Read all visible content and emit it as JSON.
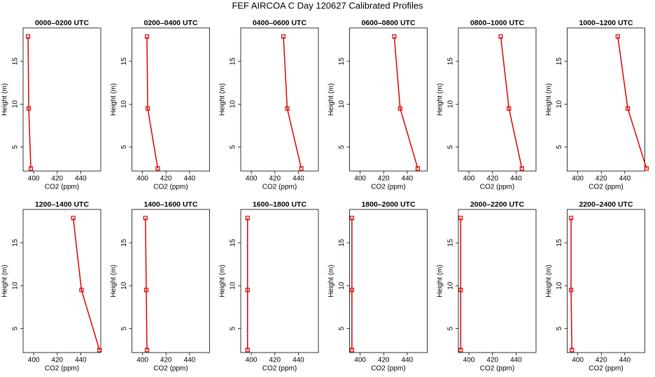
{
  "title": "FEF AIRCOA C  Day 120627  Calibrated Profiles",
  "chart_data": [
    {
      "type": "line",
      "title": "0000–0200 UTC",
      "xlabel": "CO2 (ppm)",
      "ylabel": "Height (m)",
      "x": [
        397.6,
        395.8,
        395.2
      ],
      "values": [
        2.5,
        9.5,
        17.9
      ],
      "color": "#dd0000",
      "xlim": [
        391,
        457
      ],
      "ylim": [
        2.2,
        18.9
      ],
      "xticks": [
        400,
        420,
        440
      ],
      "yticks": [
        5,
        10,
        15
      ]
    },
    {
      "type": "line",
      "title": "0200–0400 UTC",
      "xlabel": "CO2 (ppm)",
      "ylabel": "Height (m)",
      "x": [
        413,
        404.4,
        403.8
      ],
      "values": [
        2.5,
        9.5,
        17.9
      ],
      "color": "#dd0000",
      "xlim": [
        391,
        457
      ],
      "ylim": [
        2.2,
        18.9
      ],
      "xticks": [
        400,
        420,
        440
      ],
      "yticks": [
        5,
        10,
        15
      ]
    },
    {
      "type": "line",
      "title": "0400–0600 UTC",
      "xlabel": "CO2 (ppm)",
      "ylabel": "Height (m)",
      "x": [
        442.5,
        430.5,
        427.3
      ],
      "values": [
        2.5,
        9.5,
        17.9
      ],
      "color": "#dd0000",
      "xlim": [
        391,
        457
      ],
      "ylim": [
        2.2,
        18.9
      ],
      "xticks": [
        400,
        420,
        440
      ],
      "yticks": [
        5,
        10,
        15
      ]
    },
    {
      "type": "line",
      "title": "0600–0800 UTC",
      "xlabel": "CO2 (ppm)",
      "ylabel": "Height (m)",
      "x": [
        449,
        434,
        429
      ],
      "values": [
        2.5,
        9.5,
        17.9
      ],
      "color": "#dd0000",
      "xlim": [
        391,
        457
      ],
      "ylim": [
        2.2,
        18.9
      ],
      "xticks": [
        400,
        420,
        440
      ],
      "yticks": [
        5,
        10,
        15
      ]
    },
    {
      "type": "line",
      "title": "0800–1000 UTC",
      "xlabel": "CO2 (ppm)",
      "ylabel": "Height (m)",
      "x": [
        445,
        434,
        427
      ],
      "values": [
        2.5,
        9.5,
        17.9
      ],
      "color": "#dd0000",
      "xlim": [
        391,
        457
      ],
      "ylim": [
        2.2,
        18.9
      ],
      "xticks": [
        400,
        420,
        440
      ],
      "yticks": [
        5,
        10,
        15
      ]
    },
    {
      "type": "line",
      "title": "1000–1200 UTC",
      "xlabel": "CO2 (ppm)",
      "ylabel": "Height (m)",
      "x": [
        458.4,
        442.5,
        434
      ],
      "values": [
        2.5,
        9.5,
        17.9
      ],
      "color": "#dd0000",
      "xlim": [
        391,
        457
      ],
      "ylim": [
        2.2,
        18.9
      ],
      "xticks": [
        400,
        420,
        440
      ],
      "yticks": [
        5,
        10,
        15
      ]
    },
    {
      "type": "line",
      "title": "1200–1400 UTC",
      "xlabel": "CO2 (ppm)",
      "ylabel": "Height (m)",
      "x": [
        455.9,
        440.6,
        433.6
      ],
      "values": [
        2.5,
        9.5,
        17.9
      ],
      "color": "#dd0000",
      "xlim": [
        391,
        457
      ],
      "ylim": [
        2.2,
        18.9
      ],
      "xticks": [
        400,
        420,
        440
      ],
      "yticks": [
        5,
        10,
        15
      ]
    },
    {
      "type": "line",
      "title": "1400–1600 UTC",
      "xlabel": "CO2 (ppm)",
      "ylabel": "Height (m)",
      "x": [
        403.8,
        403.2,
        402.5
      ],
      "values": [
        2.5,
        9.5,
        17.9
      ],
      "color": "#dd0000",
      "xlim": [
        391,
        457
      ],
      "ylim": [
        2.2,
        18.9
      ],
      "xticks": [
        400,
        420,
        440
      ],
      "yticks": [
        5,
        10,
        15
      ]
    },
    {
      "type": "line",
      "title": "1600–1800 UTC",
      "xlabel": "CO2 (ppm)",
      "ylabel": "Height (m)",
      "x": [
        396.8,
        396.8,
        396.8
      ],
      "values": [
        2.5,
        9.5,
        17.9
      ],
      "color": "#dd0000",
      "xlim": [
        391,
        457
      ],
      "ylim": [
        2.2,
        18.9
      ],
      "xticks": [
        400,
        420,
        440
      ],
      "yticks": [
        5,
        10,
        15
      ]
    },
    {
      "type": "line",
      "title": "1800–2000 UTC",
      "xlabel": "CO2 (ppm)",
      "ylabel": "Height (m)",
      "x": [
        393,
        393,
        393
      ],
      "values": [
        2.5,
        9.5,
        17.9
      ],
      "color": "#dd0000",
      "xlim": [
        391,
        457
      ],
      "ylim": [
        2.2,
        18.9
      ],
      "xticks": [
        400,
        420,
        440
      ],
      "yticks": [
        5,
        10,
        15
      ]
    },
    {
      "type": "line",
      "title": "2000–2200 UTC",
      "xlabel": "CO2 (ppm)",
      "ylabel": "Height (m)",
      "x": [
        393,
        393,
        393
      ],
      "values": [
        2.5,
        9.5,
        17.9
      ],
      "color": "#dd0000",
      "xlim": [
        391,
        457
      ],
      "ylim": [
        2.2,
        18.9
      ],
      "xticks": [
        400,
        420,
        440
      ],
      "yticks": [
        5,
        10,
        15
      ]
    },
    {
      "type": "line",
      "title": "2200–2400 UTC",
      "xlabel": "CO2 (ppm)",
      "ylabel": "Height (m)",
      "x": [
        395,
        394.3,
        394.3
      ],
      "values": [
        2.5,
        9.5,
        17.9
      ],
      "color": "#dd0000",
      "xlim": [
        391,
        457
      ],
      "ylim": [
        2.2,
        18.9
      ],
      "xticks": [
        400,
        420,
        440
      ],
      "yticks": [
        5,
        10,
        15
      ]
    }
  ]
}
